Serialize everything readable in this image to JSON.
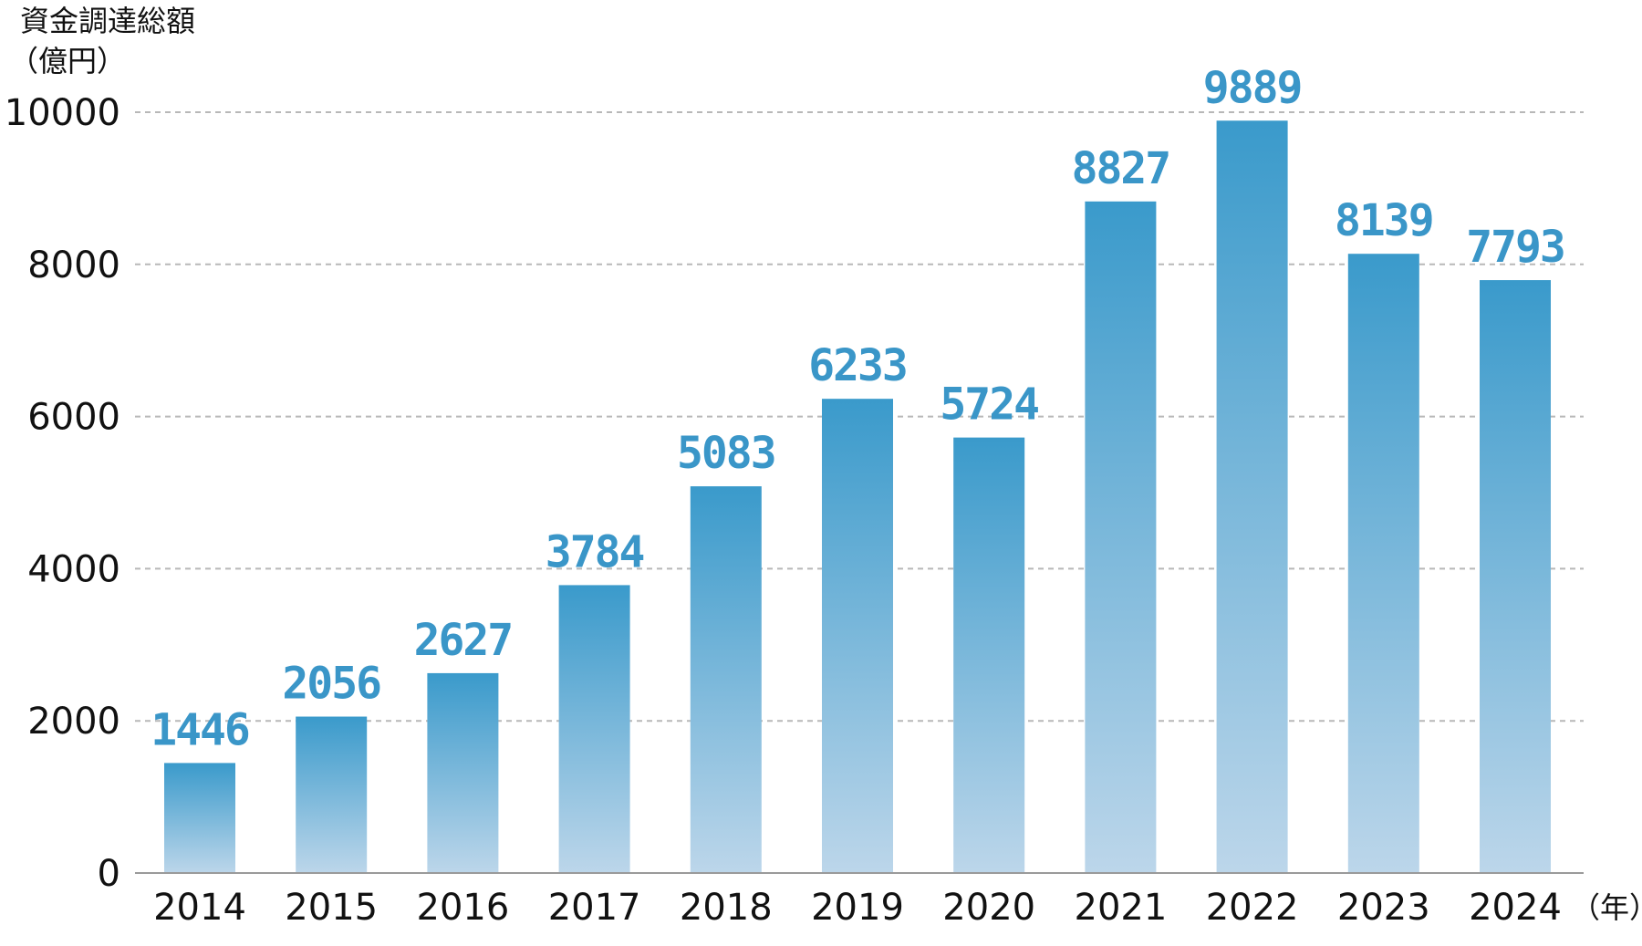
{
  "chart_data": {
    "type": "bar",
    "ylabel_line1": "資金調達総額",
    "ylabel_line2": "（億円）",
    "xunit": "（年）",
    "categories": [
      "2014",
      "2015",
      "2016",
      "2017",
      "2018",
      "2019",
      "2020",
      "2021",
      "2022",
      "2023",
      "2024"
    ],
    "values": [
      1446,
      2056,
      2627,
      3784,
      5083,
      6233,
      5724,
      8827,
      9889,
      8139,
      7793
    ],
    "value_labels": [
      "1446",
      "2056",
      "2627",
      "3784",
      "5083",
      "6233",
      "5724",
      "8827",
      "9889",
      "8139",
      "7793"
    ],
    "ylim": [
      0,
      10000
    ],
    "yticks": [
      0,
      2000,
      4000,
      6000,
      8000,
      10000
    ],
    "ytick_labels": [
      "0",
      "2000",
      "4000",
      "6000",
      "8000",
      "10000"
    ],
    "grid": true,
    "colors": {
      "bar_top": "#3a9acb",
      "bar_bottom": "#bcd6ea",
      "label": "#3a96c8"
    }
  }
}
